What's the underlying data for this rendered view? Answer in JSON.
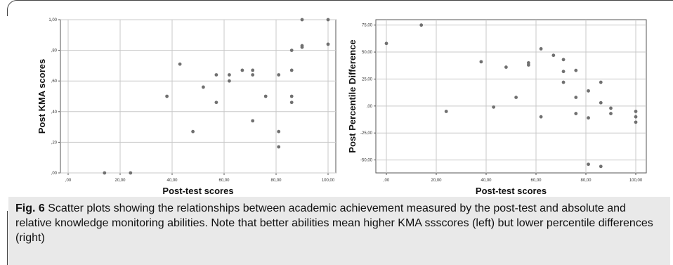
{
  "caption": {
    "label": "Fig. 6",
    "text": " Scatter plots showing the relationships between academic achievement measured by the post-test and absolute and relative knowledge monitoring abilities. Note that better abilities mean higher KMA ssscores (left) but lower percentile differences (right)"
  },
  "chart_data": [
    {
      "type": "scatter",
      "xlabel": "Post-test scores",
      "ylabel": "Post KMA scores",
      "xlim": [
        0,
        100
      ],
      "ylim": [
        0,
        1
      ],
      "x_ticks": [
        ",00",
        "20,00",
        "40,00",
        "60,00",
        "80,00",
        "100,00"
      ],
      "y_ticks": [
        ",00",
        ",20",
        ",40",
        ",60",
        ",80",
        "1,00"
      ],
      "x_tick_values": [
        0,
        20,
        40,
        60,
        80,
        100
      ],
      "y_tick_values": [
        0,
        0.2,
        0.4,
        0.6,
        0.8,
        1.0
      ],
      "grid": true,
      "point_color": "#707070",
      "points": [
        {
          "x": 14,
          "y": 0.0
        },
        {
          "x": 24,
          "y": 0.0
        },
        {
          "x": 38,
          "y": 0.5
        },
        {
          "x": 43,
          "y": 0.71
        },
        {
          "x": 48,
          "y": 0.27
        },
        {
          "x": 52,
          "y": 0.56
        },
        {
          "x": 57,
          "y": 0.64
        },
        {
          "x": 57,
          "y": 0.46
        },
        {
          "x": 62,
          "y": 0.64
        },
        {
          "x": 62,
          "y": 0.6
        },
        {
          "x": 67,
          "y": 0.67
        },
        {
          "x": 71,
          "y": 0.67
        },
        {
          "x": 71,
          "y": 0.64
        },
        {
          "x": 71,
          "y": 0.34
        },
        {
          "x": 76,
          "y": 0.5
        },
        {
          "x": 81,
          "y": 0.64
        },
        {
          "x": 81,
          "y": 0.27
        },
        {
          "x": 81,
          "y": 0.17
        },
        {
          "x": 86,
          "y": 0.8
        },
        {
          "x": 86,
          "y": 0.67
        },
        {
          "x": 86,
          "y": 0.5
        },
        {
          "x": 86,
          "y": 0.46
        },
        {
          "x": 90,
          "y": 1.0
        },
        {
          "x": 90,
          "y": 0.83
        },
        {
          "x": 90,
          "y": 0.82
        },
        {
          "x": 100,
          "y": 1.0
        },
        {
          "x": 100,
          "y": 0.84
        }
      ]
    },
    {
      "type": "scatter",
      "xlabel": "Post-test scores",
      "ylabel": "Post Percentile Difference",
      "xlim": [
        0,
        100
      ],
      "ylim": [
        -62,
        80
      ],
      "x_ticks": [
        ",00",
        "20,00",
        "40,00",
        "60,00",
        "80,00",
        "100,00"
      ],
      "y_ticks": [
        "-50,00",
        "-25,00",
        ",00",
        "25,00",
        "50,00",
        "75,00"
      ],
      "x_tick_values": [
        0,
        20,
        40,
        60,
        80,
        100
      ],
      "y_tick_values": [
        -50,
        -25,
        0,
        25,
        50,
        75
      ],
      "grid": true,
      "point_color": "#707070",
      "points": [
        {
          "x": 0,
          "y": 58
        },
        {
          "x": 14,
          "y": 75
        },
        {
          "x": 24,
          "y": -5
        },
        {
          "x": 38,
          "y": 41
        },
        {
          "x": 43,
          "y": -1
        },
        {
          "x": 48,
          "y": 36
        },
        {
          "x": 52,
          "y": 8
        },
        {
          "x": 57,
          "y": 40
        },
        {
          "x": 57,
          "y": 38
        },
        {
          "x": 62,
          "y": 53
        },
        {
          "x": 62,
          "y": -10
        },
        {
          "x": 67,
          "y": 47
        },
        {
          "x": 71,
          "y": 43
        },
        {
          "x": 71,
          "y": 32
        },
        {
          "x": 71,
          "y": 22
        },
        {
          "x": 76,
          "y": 33
        },
        {
          "x": 76,
          "y": 8
        },
        {
          "x": 76,
          "y": -7
        },
        {
          "x": 81,
          "y": 14
        },
        {
          "x": 81,
          "y": -11
        },
        {
          "x": 81,
          "y": -54
        },
        {
          "x": 86,
          "y": 22
        },
        {
          "x": 86,
          "y": 3
        },
        {
          "x": 86,
          "y": -56
        },
        {
          "x": 90,
          "y": -2
        },
        {
          "x": 90,
          "y": -7
        },
        {
          "x": 100,
          "y": -5
        },
        {
          "x": 100,
          "y": -10
        },
        {
          "x": 100,
          "y": -15
        }
      ]
    }
  ]
}
